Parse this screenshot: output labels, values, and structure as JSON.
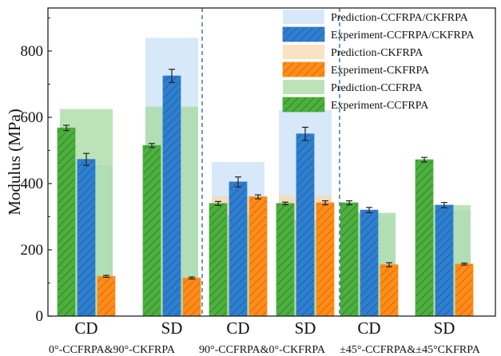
{
  "chart_data": {
    "type": "bar",
    "ylabel": "Modulus (MPa)",
    "ylim": [
      0,
      930
    ],
    "yticks": [
      0,
      200,
      400,
      600,
      800
    ],
    "groups": [
      {
        "label": "0°-CCFRPA&90°-CKFRPA",
        "categories": [
          "CD",
          "SD"
        ]
      },
      {
        "label": "90°-CCFRPA&0°-CKFRPA",
        "categories": [
          "CD",
          "SD"
        ]
      },
      {
        "label": "±45°-CCFRPA&±45°CKFRPA",
        "categories": [
          "CD",
          "SD"
        ]
      }
    ],
    "categories": [
      "CD",
      "SD",
      "CD",
      "SD",
      "CD",
      "SD"
    ],
    "series": [
      {
        "name": "Prediction-CCFRPA/CKFRPA",
        "kind": "prediction",
        "color": "#c9e2f6",
        "values": [
          455,
          840,
          465,
          622,
          305,
          318
        ]
      },
      {
        "name": "Experiment-CCFRPA/CKFRPA",
        "kind": "experiment",
        "color": "#2f7fd0",
        "values": [
          473,
          725,
          405,
          550,
          320,
          335
        ],
        "errors": [
          18,
          20,
          15,
          20,
          8,
          8
        ]
      },
      {
        "name": "Prediction-CKFRPA",
        "kind": "prediction",
        "color": "#f8d8b0",
        "values": [
          108,
          108,
          362,
          365,
          148,
          150
        ]
      },
      {
        "name": "Experiment-CKFRPA",
        "kind": "experiment",
        "color": "#ff8c1a",
        "values": [
          120,
          115,
          360,
          342,
          155,
          157
        ],
        "errors": [
          3,
          3,
          6,
          6,
          6,
          3
        ]
      },
      {
        "name": "Prediction-CCFRPA",
        "kind": "prediction",
        "color": "#a6d9a0",
        "values": [
          625,
          632,
          305,
          290,
          312,
          335
        ]
      },
      {
        "name": "Experiment-CCFRPA",
        "kind": "experiment",
        "color": "#4caf3e",
        "values": [
          568,
          515,
          340,
          340,
          342,
          472
        ],
        "errors": [
          8,
          6,
          6,
          4,
          6,
          7
        ]
      }
    ],
    "legend_position": "top-right",
    "grid": false
  }
}
